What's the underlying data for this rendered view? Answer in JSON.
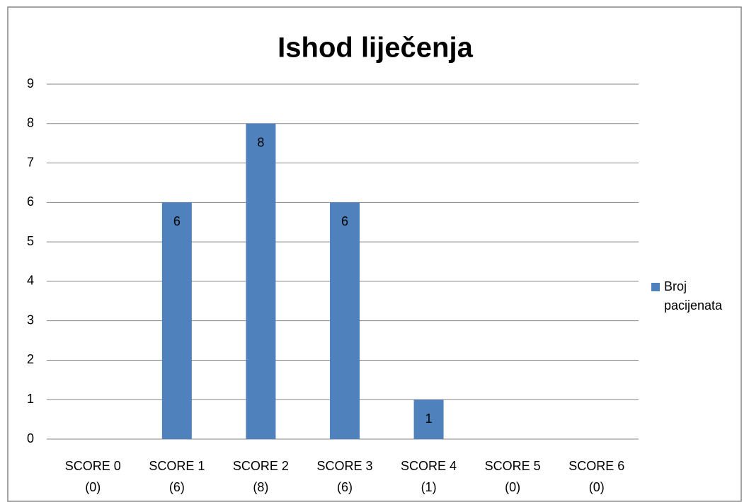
{
  "chart_data": {
    "type": "bar",
    "title": "Ishod liječenja",
    "categories": [
      [
        "SCORE 0",
        "(0)"
      ],
      [
        "SCORE 1",
        "(6)"
      ],
      [
        "SCORE 2",
        "(8)"
      ],
      [
        "SCORE 3",
        "(6)"
      ],
      [
        "SCORE 4",
        "(1)"
      ],
      [
        "SCORE 5",
        "(0)"
      ],
      [
        "SCORE 6",
        "(0)"
      ]
    ],
    "series": [
      {
        "name": "Broj pacijenata",
        "color": "#4f81bd",
        "values": [
          0,
          6,
          8,
          6,
          1,
          0,
          0
        ]
      }
    ],
    "ylim": [
      0,
      9
    ],
    "yticks": [
      0,
      1,
      2,
      3,
      4,
      5,
      6,
      7,
      8,
      9
    ],
    "grid": true,
    "legend": "right"
  }
}
